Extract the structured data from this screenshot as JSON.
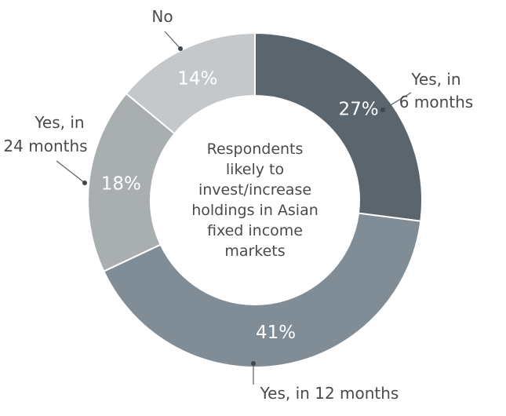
{
  "chart_data": {
    "type": "pie",
    "variant": "donut",
    "center_text": [
      "Respondents",
      "likely to",
      "invest/increase",
      "holdings in Asian",
      "fixed income",
      "markets"
    ],
    "slices": [
      {
        "label": [
          "Yes, in",
          "6 months"
        ],
        "value": 27,
        "value_label": "27%",
        "color": "#5b656d"
      },
      {
        "label": [
          "Yes, in 12 months"
        ],
        "value": 41,
        "value_label": "41%",
        "color": "#818d96"
      },
      {
        "label": [
          "Yes, in",
          "24 months"
        ],
        "value": 18,
        "value_label": "18%",
        "color": "#a9aeb1"
      },
      {
        "label": [
          "No"
        ],
        "value": 14,
        "value_label": "14%",
        "color": "#c5c8cb"
      }
    ]
  }
}
